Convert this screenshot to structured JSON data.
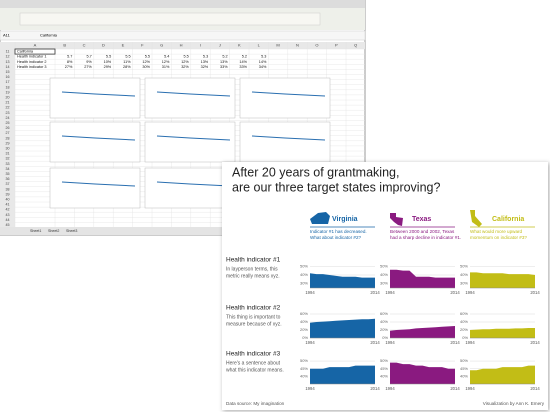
{
  "excel": {
    "cell_name": "A11",
    "formula": "California",
    "col_letters": [
      "A",
      "B",
      "C",
      "D",
      "E",
      "F",
      "G",
      "H",
      "I",
      "J",
      "K",
      "L",
      "M",
      "N",
      "O",
      "P",
      "Q"
    ],
    "row_numbers": [
      "11",
      "12",
      "13",
      "14",
      "15",
      "16",
      "17",
      "18",
      "19",
      "20",
      "21",
      "22",
      "23",
      "24",
      "25",
      "26",
      "27",
      "28",
      "29",
      "30",
      "31",
      "32",
      "33",
      "34",
      "35",
      "36",
      "37",
      "38",
      "39",
      "40",
      "41",
      "42",
      "43",
      "44",
      "45"
    ],
    "rows": [
      [
        "California"
      ],
      [
        "Health indicator 1",
        "5.7",
        "5.7",
        "5.5",
        "5.5",
        "5.5",
        "5.4",
        "5.5",
        "5.3",
        "5.2",
        "5.2",
        "5.3"
      ],
      [
        "Health indicator 2",
        "8%",
        "9%",
        "10%",
        "11%",
        "12%",
        "12%",
        "12%",
        "13%",
        "13%",
        "14%",
        "14%"
      ],
      [
        "Health indicator 3",
        "27%",
        "27%",
        "29%",
        "28%",
        "30%",
        "31%",
        "32%",
        "32%",
        "33%",
        "33%",
        "34%"
      ]
    ],
    "sheet_tabs": [
      "Sheet1",
      "Sheet2",
      "Sheet3"
    ]
  },
  "dashboard": {
    "title": [
      "After 20 years of grantmaking,",
      "are our three target states improving?"
    ],
    "columns": [
      {
        "state": "Virginia",
        "note": [
          "Indicator #1 has decreased.",
          "What about indicator #2?"
        ],
        "color": "#1665a6"
      },
      {
        "state": "Texas",
        "note": [
          "Between 2000 and 2002, Texas",
          "had a sharp decline in indicator #1."
        ],
        "color": "#8a1a80"
      },
      {
        "state": "California",
        "note": [
          "What would more upward",
          "momentum on indicator #3?"
        ],
        "color": "#c2bd16"
      }
    ],
    "x_labels": [
      "1994",
      "2014"
    ],
    "rows": [
      {
        "label": "Health indicator #1",
        "desc": [
          "In layperson terms, this",
          "metric really means xyz."
        ],
        "ylim": [
          25,
          55
        ],
        "yticks": [
          {
            "value": 30,
            "label": "30%"
          },
          {
            "value": 40,
            "label": "40%"
          },
          {
            "value": 50,
            "label": "50%"
          }
        ],
        "charts": [
          [
            42,
            41,
            41,
            40,
            39,
            38,
            38,
            38,
            37,
            37,
            37
          ],
          [
            46,
            46,
            45,
            45,
            38,
            38,
            38,
            37,
            37,
            37,
            37
          ],
          [
            43,
            43,
            42,
            42,
            42,
            42,
            41,
            41,
            41,
            41,
            40
          ]
        ]
      },
      {
        "label": "Health indicator #2",
        "desc": [
          "This thing is important to",
          "measure because of xyz."
        ],
        "ylim": [
          0,
          65
        ],
        "yticks": [
          {
            "value": 0,
            "label": "0%"
          },
          {
            "value": 20,
            "label": "20%"
          },
          {
            "value": 40,
            "label": "40%"
          },
          {
            "value": 60,
            "label": "60%"
          }
        ],
        "charts": [
          [
            38,
            40,
            41,
            42,
            43,
            44,
            45,
            46,
            47,
            47,
            48
          ],
          [
            18,
            20,
            21,
            22,
            24,
            25,
            26,
            27,
            28,
            29,
            30
          ],
          [
            20,
            21,
            22,
            22,
            23,
            23,
            23,
            24,
            24,
            25,
            25
          ]
        ]
      },
      {
        "label": "Health indicator #3",
        "desc": [
          "Here's a sentence about",
          "what this indicator means."
        ],
        "ylim": [
          35,
          52
        ],
        "yticks": [
          {
            "value": 40,
            "label": "40%"
          },
          {
            "value": 45,
            "label": "45%"
          },
          {
            "value": 50,
            "label": "50%"
          }
        ],
        "charts": [
          [
            45,
            45,
            45,
            46,
            46,
            46,
            46,
            47,
            47,
            47,
            47
          ],
          [
            49,
            49,
            48,
            48,
            47,
            47,
            46,
            46,
            46,
            45,
            45
          ],
          [
            44,
            44,
            45,
            45,
            45,
            46,
            46,
            46,
            46,
            47,
            47
          ]
        ]
      }
    ],
    "footer": {
      "source": "Data source: My imagination",
      "credit": "Visualization by Ann K. Emery"
    }
  }
}
